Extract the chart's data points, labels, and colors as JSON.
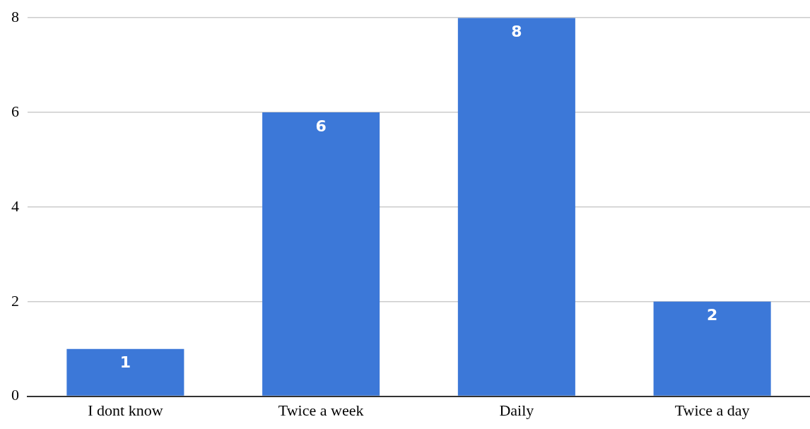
{
  "chart_data": {
    "type": "bar",
    "categories": [
      "I dont know",
      "Twice a week",
      "Daily",
      "Twice a day"
    ],
    "values": [
      1,
      6,
      8,
      2
    ],
    "color": "#3c78d8",
    "ylim": [
      0,
      8
    ],
    "yticks": [
      0,
      2,
      4,
      6,
      8
    ],
    "grid": "y",
    "legend": false,
    "data_labels": true
  }
}
